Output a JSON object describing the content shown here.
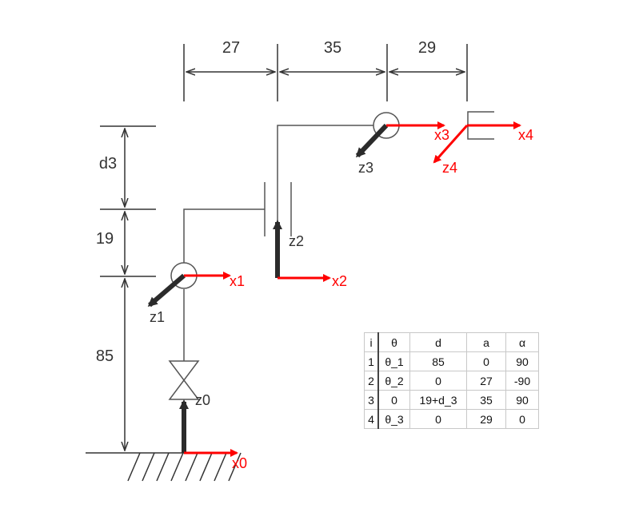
{
  "dimensions": {
    "top": [
      "27",
      "35",
      "29"
    ],
    "left": [
      "d3",
      "19",
      "85"
    ]
  },
  "frames": {
    "x": [
      "x0",
      "x1",
      "x2",
      "x3",
      "x4"
    ],
    "z": [
      "z0",
      "z1",
      "z2",
      "z3",
      "z4"
    ]
  },
  "colors": {
    "x_axis": "#ff0000",
    "z_axis": "#2b2b2b",
    "link": "#555555",
    "label_dark": "#333333"
  },
  "dh_table": {
    "headers": [
      "i",
      "θ",
      "d",
      "a",
      "α"
    ],
    "rows": [
      [
        "1",
        "θ_1",
        "85",
        "0",
        "90"
      ],
      [
        "2",
        "θ_2",
        "0",
        "27",
        "-90"
      ],
      [
        "3",
        "0",
        "19+d_3",
        "35",
        "90"
      ],
      [
        "4",
        "θ_3",
        "0",
        "29",
        "0"
      ]
    ]
  }
}
